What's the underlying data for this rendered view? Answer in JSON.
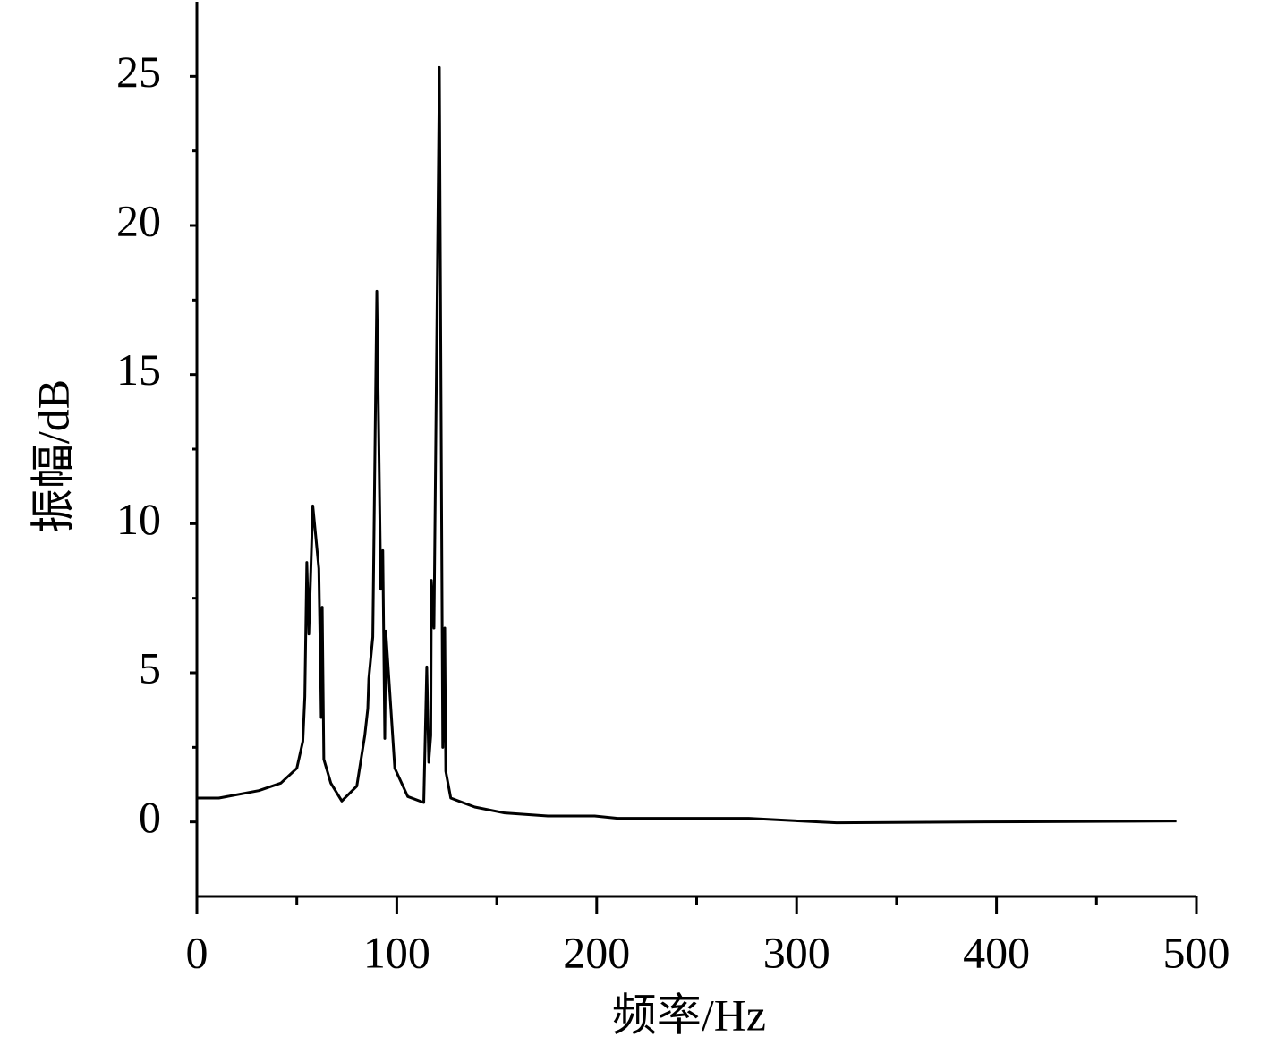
{
  "chart_data": {
    "type": "line",
    "x_label": "频率/Hz",
    "y_label": "振幅/dB",
    "xlim": [
      0,
      500
    ],
    "xticks": [
      0,
      100,
      200,
      300,
      400,
      500
    ],
    "ylim": [
      -2.5,
      27.5
    ],
    "yticks": [
      0,
      5,
      10,
      15,
      20,
      25
    ],
    "series": [
      {
        "color": "#000000",
        "x": [
          0,
          11,
          31,
          42,
          50,
          53,
          54,
          55,
          56,
          58,
          61,
          62,
          62.2,
          62.7,
          63.5,
          67,
          72.5,
          80,
          84,
          85.5,
          86,
          88,
          90,
          92,
          93,
          94,
          94.5,
          99,
          105.5,
          113.5,
          115,
          116,
          117,
          117.3,
          118.6,
          121.3,
          123,
          124,
          124.5,
          127,
          139,
          154,
          175.5,
          199,
          210.5,
          276,
          320,
          394,
          490
        ],
        "values": [
          0.8,
          0.8,
          1.05,
          1.3,
          1.8,
          2.7,
          4.2,
          8.7,
          6.3,
          10.6,
          8.5,
          4.5,
          3.5,
          7.2,
          2.1,
          1.3,
          0.7,
          1.2,
          2.9,
          3.8,
          4.8,
          6.2,
          17.8,
          7.8,
          9.1,
          2.8,
          6.4,
          1.8,
          0.85,
          0.65,
          5.2,
          2.0,
          2.9,
          8.1,
          6.5,
          25.3,
          2.5,
          6.5,
          1.7,
          0.8,
          0.5,
          0.3,
          0.2,
          0.2,
          0.12,
          0.12,
          -0.03,
          0,
          0.03
        ]
      }
    ]
  }
}
